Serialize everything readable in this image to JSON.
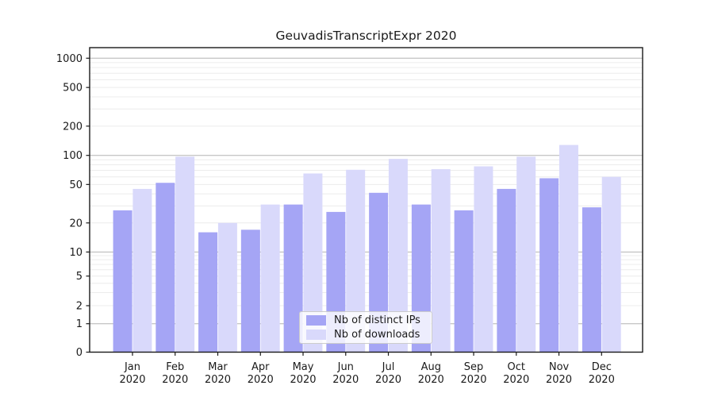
{
  "title": "GeuvadisTranscriptExpr 2020",
  "chart_data": {
    "type": "bar",
    "title": "GeuvadisTranscriptExpr 2020",
    "categories": [
      "Jan 2020",
      "Feb 2020",
      "Mar 2020",
      "Apr 2020",
      "May 2020",
      "Jun 2020",
      "Jul 2020",
      "Aug 2020",
      "Sep 2020",
      "Oct 2020",
      "Nov 2020",
      "Dec 2020"
    ],
    "series": [
      {
        "name": "Nb of distinct IPs",
        "color": "#a5a5f5",
        "values": [
          27,
          52,
          16,
          17,
          31,
          26,
          41,
          31,
          27,
          45,
          58,
          29
        ]
      },
      {
        "name": "Nb of downloads",
        "color": "#d9d9fb",
        "values": [
          45,
          97,
          20,
          31,
          65,
          71,
          92,
          72,
          77,
          97,
          128,
          60
        ]
      }
    ],
    "xlabel": "",
    "ylabel": "",
    "yscale": "symlog",
    "yticks": [
      0,
      1,
      2,
      5,
      10,
      20,
      50,
      100,
      200,
      500,
      1000
    ],
    "ylim": [
      0,
      1280
    ],
    "grid": "horizontal",
    "legend_position": "lower center",
    "colors": {
      "major_gridline": "#b4b4b4",
      "minor_gridline": "#ececec",
      "spine": "#1a1a1a",
      "tick_label": "#1a1a1a"
    }
  }
}
